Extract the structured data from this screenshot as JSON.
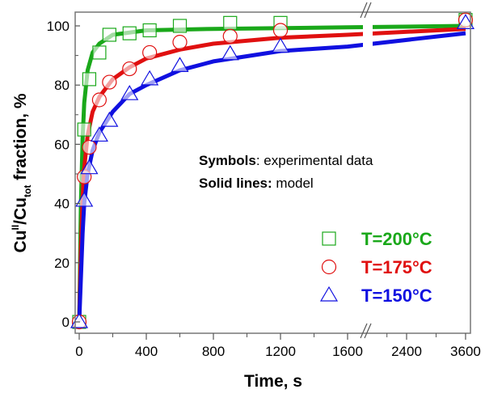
{
  "chart_data": {
    "type": "line",
    "xlabel": "Time, s",
    "ylabel": {
      "main": "Cu",
      "sup1": "II",
      "mid": "/Cu",
      "sub": "tot",
      "rest": " fraction, %"
    },
    "ylim": [
      0,
      105
    ],
    "x_axis_break": [
      1700,
      2000
    ],
    "xticks": [
      0,
      400,
      800,
      1200,
      1600,
      2400,
      3600
    ],
    "yticks": [
      0,
      20,
      40,
      60,
      80,
      100
    ],
    "grid": false,
    "annotations": [
      {
        "bold": "Symbols",
        "text": ": experimental data"
      },
      {
        "bold": "Solid lines:",
        "text": " model"
      }
    ],
    "legend_position": "bottom-right",
    "series": [
      {
        "name": "T=200°C",
        "color": "#1aa81a",
        "marker": "square",
        "points": [
          [
            0,
            0
          ],
          [
            30,
            65
          ],
          [
            60,
            82
          ],
          [
            120,
            91
          ],
          [
            180,
            97
          ],
          [
            300,
            97.5
          ],
          [
            420,
            98.5
          ],
          [
            600,
            100
          ],
          [
            900,
            101
          ],
          [
            1200,
            101
          ],
          [
            3600,
            102
          ]
        ],
        "model": [
          [
            0,
            0
          ],
          [
            10,
            40
          ],
          [
            20,
            62
          ],
          [
            30,
            74
          ],
          [
            50,
            85
          ],
          [
            80,
            91
          ],
          [
            120,
            94
          ],
          [
            200,
            97
          ],
          [
            400,
            98.5
          ],
          [
            800,
            99
          ],
          [
            1600,
            99.5
          ],
          [
            3600,
            100
          ]
        ]
      },
      {
        "name": "T=175°C",
        "color": "#e01010",
        "marker": "circle",
        "points": [
          [
            0,
            0
          ],
          [
            30,
            49
          ],
          [
            60,
            59
          ],
          [
            120,
            75
          ],
          [
            180,
            81
          ],
          [
            300,
            85.5
          ],
          [
            420,
            91
          ],
          [
            600,
            94.5
          ],
          [
            900,
            96.5
          ],
          [
            1200,
            98.5
          ],
          [
            3600,
            102
          ]
        ],
        "model": [
          [
            0,
            0
          ],
          [
            10,
            25
          ],
          [
            20,
            42
          ],
          [
            30,
            52
          ],
          [
            50,
            63
          ],
          [
            80,
            71
          ],
          [
            120,
            76
          ],
          [
            200,
            82
          ],
          [
            300,
            86
          ],
          [
            400,
            89
          ],
          [
            600,
            92
          ],
          [
            800,
            94
          ],
          [
            1200,
            96
          ],
          [
            1600,
            97
          ],
          [
            3600,
            99
          ]
        ]
      },
      {
        "name": "T=150°C",
        "color": "#1010e0",
        "marker": "triangle",
        "points": [
          [
            0,
            0
          ],
          [
            30,
            41
          ],
          [
            60,
            52
          ],
          [
            120,
            63
          ],
          [
            180,
            68
          ],
          [
            300,
            77
          ],
          [
            420,
            82
          ],
          [
            600,
            86.5
          ],
          [
            900,
            90.5
          ],
          [
            1200,
            93
          ],
          [
            3600,
            101
          ]
        ],
        "model": [
          [
            0,
            0
          ],
          [
            10,
            15
          ],
          [
            20,
            30
          ],
          [
            30,
            40
          ],
          [
            50,
            50
          ],
          [
            80,
            58
          ],
          [
            120,
            64
          ],
          [
            200,
            71
          ],
          [
            300,
            77
          ],
          [
            400,
            80
          ],
          [
            600,
            85
          ],
          [
            800,
            88
          ],
          [
            1200,
            91.5
          ],
          [
            1600,
            93
          ],
          [
            3600,
            97.5
          ]
        ]
      }
    ]
  }
}
